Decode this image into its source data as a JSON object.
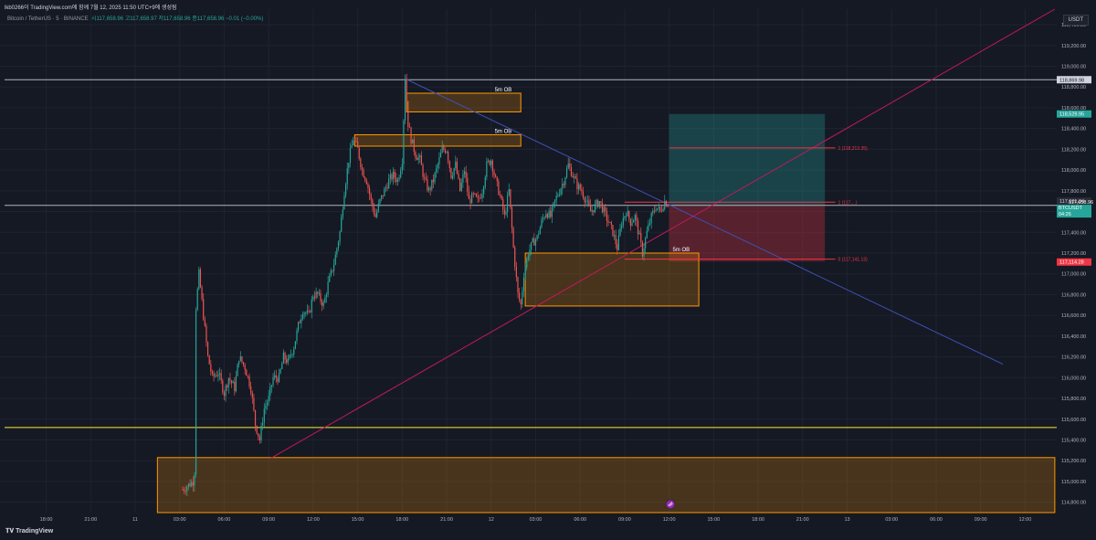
{
  "header": {
    "attribution": "lkb0266이 TradingView.com에 함께 7월 12, 2025 11:50 UTC+9에 생성됨",
    "symbol_line": "Bitcoin / TetherUS · 5 · BINANCE",
    "ohlc": "시117,658.96  고117,658.97  저117,658.96  종117,658.96  −0.01 (−0.00%)",
    "currency": "USDT"
  },
  "footer": {
    "brand": "TradingView"
  },
  "colors": {
    "background": "#151924",
    "up": "#26a69a",
    "down": "#ef5350",
    "ob_fill": "rgba(255,152,0,0.22)",
    "ob_border": "#ff9800",
    "long_target": "rgba(38,166,154,0.30)",
    "long_stop": "rgba(242,54,69,0.30)",
    "fib_line": "#f23645",
    "trend_up": "#c2185b",
    "trend_down": "#3f51b5",
    "level_line": "#ffeb3b",
    "hline": "#b2b5be",
    "price_up_label": "#26a69a",
    "price_down_label": "#f23645"
  },
  "chart_data": {
    "type": "candlestick",
    "symbol": "BTCUSDT",
    "interval": "5",
    "ylim": [
      114700,
      119550
    ],
    "y_ticks": [
      "119,400.00",
      "119,200.00",
      "119,000.00",
      "118,800.00",
      "118,600.00",
      "118,400.00",
      "118,200.00",
      "118,000.00",
      "117,800.00",
      "117,600.00",
      "117,400.00",
      "117,200.00",
      "117,000.00",
      "116,800.00",
      "116,600.00",
      "116,400.00",
      "116,200.00",
      "116,000.00",
      "115,800.00",
      "115,600.00",
      "115,400.00",
      "115,200.00",
      "115,000.00",
      "114,800.00"
    ],
    "x_ticks": [
      "18:00",
      "21:00",
      "11",
      "03:00",
      "06:00",
      "09:00",
      "12:00",
      "15:00",
      "18:00",
      "21:00",
      "12",
      "03:00",
      "06:00",
      "09:00",
      "12:00",
      "15:00",
      "18:00",
      "21:00",
      "13",
      "03:00",
      "06:00",
      "09:00",
      "12:00"
    ],
    "x_tick_hours": [
      -6,
      -3,
      0,
      3,
      6,
      9,
      12,
      15,
      18,
      21,
      24,
      27,
      30,
      33,
      36,
      39,
      42,
      45,
      48,
      51,
      54,
      57,
      60
    ],
    "price_path": [
      [
        3.2,
        114920
      ],
      [
        3.9,
        115000
      ],
      [
        4.0,
        115100
      ],
      [
        4.05,
        116600
      ],
      [
        4.3,
        117000
      ],
      [
        4.6,
        116600
      ],
      [
        4.9,
        116200
      ],
      [
        5.2,
        116000
      ],
      [
        5.6,
        116050
      ],
      [
        6.0,
        115850
      ],
      [
        6.3,
        116000
      ],
      [
        6.7,
        115900
      ],
      [
        7.0,
        116200
      ],
      [
        7.4,
        116100
      ],
      [
        7.8,
        115900
      ],
      [
        8.1,
        115550
      ],
      [
        8.4,
        115400
      ],
      [
        8.7,
        115700
      ],
      [
        9.0,
        115800
      ],
      [
        9.3,
        116000
      ],
      [
        9.7,
        116000
      ],
      [
        10.0,
        116200
      ],
      [
        10.3,
        116150
      ],
      [
        10.7,
        116300
      ],
      [
        11.0,
        116500
      ],
      [
        11.3,
        116650
      ],
      [
        11.7,
        116600
      ],
      [
        12.0,
        116800
      ],
      [
        12.3,
        116800
      ],
      [
        12.7,
        116700
      ],
      [
        13.0,
        116900
      ],
      [
        13.4,
        117100
      ],
      [
        13.8,
        117400
      ],
      [
        14.1,
        117800
      ],
      [
        14.4,
        118100
      ],
      [
        14.7,
        118300
      ],
      [
        15.0,
        118200
      ],
      [
        15.3,
        118000
      ],
      [
        15.6,
        117900
      ],
      [
        15.9,
        117700
      ],
      [
        16.2,
        117550
      ],
      [
        16.5,
        117700
      ],
      [
        16.8,
        117800
      ],
      [
        17.1,
        117900
      ],
      [
        17.4,
        117950
      ],
      [
        17.7,
        117900
      ],
      [
        18.0,
        118100
      ],
      [
        18.2,
        118900
      ],
      [
        18.4,
        118450
      ],
      [
        18.6,
        118300
      ],
      [
        18.9,
        118150
      ],
      [
        19.2,
        118100
      ],
      [
        19.5,
        117900
      ],
      [
        19.8,
        117800
      ],
      [
        20.1,
        117900
      ],
      [
        20.4,
        118050
      ],
      [
        20.7,
        118200
      ],
      [
        21.0,
        118200
      ],
      [
        21.3,
        117950
      ],
      [
        21.6,
        118050
      ],
      [
        21.9,
        117800
      ],
      [
        22.2,
        118000
      ],
      [
        22.5,
        117700
      ],
      [
        22.8,
        117750
      ],
      [
        23.1,
        117700
      ],
      [
        23.4,
        117800
      ],
      [
        23.7,
        118050
      ],
      [
        24.0,
        118100
      ],
      [
        24.3,
        117900
      ],
      [
        24.6,
        117750
      ],
      [
        24.9,
        117550
      ],
      [
        25.2,
        117800
      ],
      [
        25.5,
        117250
      ],
      [
        25.8,
        116800
      ],
      [
        26.0,
        116700
      ],
      [
        26.2,
        117000
      ],
      [
        26.5,
        117200
      ],
      [
        26.8,
        117300
      ],
      [
        27.1,
        117350
      ],
      [
        27.4,
        117500
      ],
      [
        27.7,
        117600
      ],
      [
        28.0,
        117550
      ],
      [
        28.3,
        117700
      ],
      [
        28.6,
        117800
      ],
      [
        28.9,
        117900
      ],
      [
        29.2,
        118050
      ],
      [
        29.5,
        117950
      ],
      [
        29.8,
        117850
      ],
      [
        30.1,
        117800
      ],
      [
        30.4,
        117700
      ],
      [
        30.7,
        117600
      ],
      [
        31.0,
        117650
      ],
      [
        31.3,
        117700
      ],
      [
        31.6,
        117600
      ],
      [
        31.9,
        117500
      ],
      [
        32.2,
        117400
      ],
      [
        32.5,
        117250
      ],
      [
        32.8,
        117500
      ],
      [
        33.1,
        117600
      ],
      [
        33.4,
        117500
      ],
      [
        33.7,
        117550
      ],
      [
        34.0,
        117350
      ],
      [
        34.2,
        117200
      ],
      [
        34.5,
        117400
      ],
      [
        34.8,
        117550
      ],
      [
        35.1,
        117650
      ],
      [
        35.4,
        117600
      ],
      [
        35.7,
        117700
      ],
      [
        36.0,
        117659
      ]
    ],
    "last_price": 117658.96,
    "order_blocks": [
      {
        "label": "5m OB",
        "x": [
          18.3,
          26.0
        ],
        "y": [
          118560,
          118740
        ]
      },
      {
        "label": "5m OB",
        "x": [
          14.8,
          26.0
        ],
        "y": [
          118230,
          118340
        ]
      },
      {
        "label": "5m OB",
        "x": [
          26.3,
          38.0
        ],
        "y": [
          116690,
          117200
        ]
      },
      {
        "label": "",
        "x": [
          1.5,
          62.0
        ],
        "y": [
          114700,
          115230
        ]
      }
    ],
    "long_position": {
      "x": [
        36.0,
        46.5
      ],
      "entry": 117659,
      "target": 118540,
      "stop": 117120
    },
    "fib_levels": [
      {
        "label": "1 (118,213.35)",
        "price": 118213,
        "x": [
          36.0,
          47.2
        ]
      },
      {
        "label": "1 (117,...)",
        "price": 117690,
        "x": [
          33.0,
          47.2
        ]
      },
      {
        "label": "0 (117,141.13)",
        "price": 117141,
        "x": [
          33.0,
          47.2
        ]
      }
    ],
    "horizontal_lines": [
      {
        "price": 118870,
        "color": "hline"
      },
      {
        "price": 117660,
        "color": "hline"
      },
      {
        "price": 115520,
        "color": "level_line"
      }
    ],
    "trend_lines": [
      {
        "from": [
          9.1,
          115220
        ],
        "to": [
          62.0,
          119550
        ],
        "color": "trend_up"
      },
      {
        "from": [
          18.2,
          118880
        ],
        "to": [
          58.5,
          116130
        ],
        "color": "trend_down"
      }
    ],
    "price_labels": [
      {
        "text": "118,869.98",
        "price": 118870,
        "style": "plain"
      },
      {
        "text": "118,529.95",
        "price": 118540,
        "style": "up"
      },
      {
        "text": "117,681.34",
        "price": 117700,
        "style": "neutral"
      },
      {
        "text": "BTCUSDT",
        "sub": "04:26",
        "price": 117630,
        "style": "last"
      },
      {
        "text": "117,114.28",
        "price": 117114,
        "style": "down"
      }
    ],
    "last_price_label": "117,658.96"
  }
}
